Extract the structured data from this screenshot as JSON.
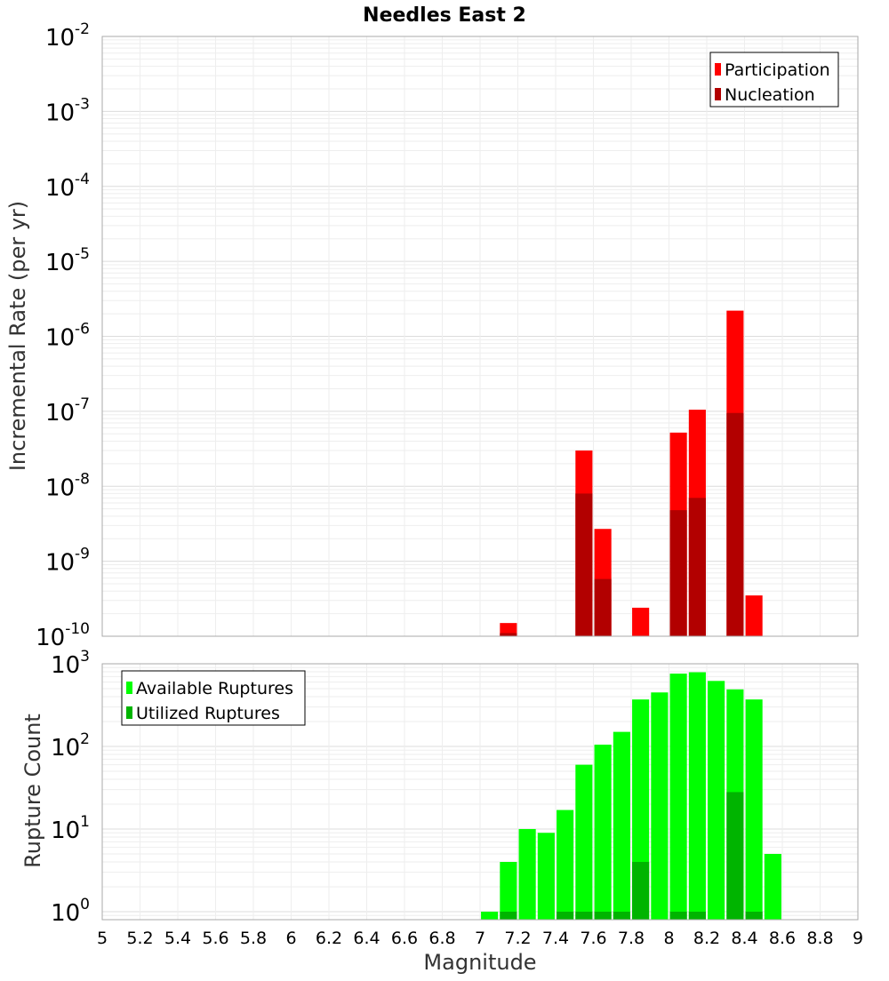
{
  "chart_data": [
    {
      "type": "bar",
      "title": "Needles East 2",
      "ylabel": "Incremental Rate (per yr)",
      "xlabel": "",
      "xlim": [
        5,
        9
      ],
      "ylim": [
        1e-10,
        0.01
      ],
      "yscale": "log",
      "grid": true,
      "legend_position": "top-right",
      "y_tick_labels": [
        {
          "base": "10",
          "exp": "-2"
        },
        {
          "base": "10",
          "exp": "-3"
        },
        {
          "base": "10",
          "exp": "-4"
        },
        {
          "base": "10",
          "exp": "-5"
        },
        {
          "base": "10",
          "exp": "-6"
        },
        {
          "base": "10",
          "exp": "-7"
        },
        {
          "base": "10",
          "exp": "-8"
        },
        {
          "base": "10",
          "exp": "-9"
        },
        {
          "base": "10",
          "exp": "-10"
        }
      ],
      "series": [
        {
          "name": "Participation",
          "color": "#ff0000",
          "points": [
            {
              "x": 7.15,
              "y": 1.5e-10
            },
            {
              "x": 7.55,
              "y": 3e-08
            },
            {
              "x": 7.65,
              "y": 2.7e-09
            },
            {
              "x": 7.85,
              "y": 2.4e-10
            },
            {
              "x": 8.05,
              "y": 5.2e-08
            },
            {
              "x": 8.15,
              "y": 1.05e-07
            },
            {
              "x": 8.35,
              "y": 2.2e-06
            },
            {
              "x": 8.45,
              "y": 3.5e-10
            }
          ]
        },
        {
          "name": "Nucleation",
          "color": "#b20000",
          "points": [
            {
              "x": 7.15,
              "y": 1.1e-10
            },
            {
              "x": 7.55,
              "y": 8e-09
            },
            {
              "x": 7.65,
              "y": 5.8e-10
            },
            {
              "x": 8.05,
              "y": 4.8e-09
            },
            {
              "x": 8.15,
              "y": 7e-09
            },
            {
              "x": 8.35,
              "y": 9.5e-08
            }
          ]
        }
      ]
    },
    {
      "type": "bar",
      "title": "",
      "ylabel": "Rupture Count",
      "xlabel": "Magnitude",
      "xlim": [
        5,
        9
      ],
      "ylim": [
        0.8,
        1000
      ],
      "yscale": "log",
      "grid": true,
      "legend_position": "top-left",
      "x_tick_labels": [
        "5",
        "5.2",
        "5.4",
        "5.6",
        "5.8",
        "6",
        "6.2",
        "6.4",
        "6.6",
        "6.8",
        "7",
        "7.2",
        "7.4",
        "7.6",
        "7.8",
        "8",
        "8.2",
        "8.4",
        "8.6",
        "8.8",
        "9"
      ],
      "y_tick_labels": [
        {
          "base": "10",
          "exp": "3"
        },
        {
          "base": "10",
          "exp": "2"
        },
        {
          "base": "10",
          "exp": "1"
        },
        {
          "base": "10",
          "exp": "0"
        }
      ],
      "series": [
        {
          "name": "Available Ruptures",
          "color": "#00ff00",
          "points": [
            {
              "x": 7.05,
              "y": 1
            },
            {
              "x": 7.15,
              "y": 4
            },
            {
              "x": 7.25,
              "y": 10
            },
            {
              "x": 7.35,
              "y": 9
            },
            {
              "x": 7.45,
              "y": 17
            },
            {
              "x": 7.55,
              "y": 60
            },
            {
              "x": 7.65,
              "y": 105
            },
            {
              "x": 7.75,
              "y": 150
            },
            {
              "x": 7.85,
              "y": 370
            },
            {
              "x": 7.95,
              "y": 450
            },
            {
              "x": 8.05,
              "y": 760
            },
            {
              "x": 8.15,
              "y": 790
            },
            {
              "x": 8.25,
              "y": 620
            },
            {
              "x": 8.35,
              "y": 490
            },
            {
              "x": 8.45,
              "y": 370
            },
            {
              "x": 8.55,
              "y": 5
            }
          ]
        },
        {
          "name": "Utilized Ruptures",
          "color": "#00b400",
          "points": [
            {
              "x": 7.15,
              "y": 1
            },
            {
              "x": 7.45,
              "y": 1
            },
            {
              "x": 7.55,
              "y": 1
            },
            {
              "x": 7.65,
              "y": 1
            },
            {
              "x": 7.75,
              "y": 1
            },
            {
              "x": 7.85,
              "y": 4
            },
            {
              "x": 8.05,
              "y": 1
            },
            {
              "x": 8.15,
              "y": 1
            },
            {
              "x": 8.35,
              "y": 28
            },
            {
              "x": 8.45,
              "y": 1
            }
          ]
        }
      ]
    }
  ]
}
